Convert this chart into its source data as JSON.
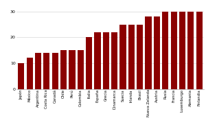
{
  "countries": [
    "Japón",
    "México",
    "Argentina",
    "Costa Rica",
    "Canadá",
    "Chile",
    "Perú",
    "Colombia",
    "Italia",
    "España",
    "Grecia",
    "Dinamarca",
    "Suecia",
    "Irlanda",
    "Brasil",
    "Nueva Zelanda",
    "Austria",
    "Rusia",
    "Francia",
    "Luxemburgo",
    "Alemania",
    "Finlandia"
  ],
  "values": [
    10,
    12,
    14,
    14,
    14,
    15,
    15,
    15,
    20,
    22,
    22,
    22,
    25,
    25,
    25,
    28,
    28,
    30,
    30,
    30,
    30,
    30
  ],
  "bar_color": "#8B0000",
  "yticks": [
    0,
    10,
    20,
    30
  ],
  "ylim": [
    0,
    33
  ],
  "bg_color": "#ffffff",
  "grid_color": "#cccccc",
  "tick_fontsize": 4.5,
  "label_fontsize": 3.8
}
